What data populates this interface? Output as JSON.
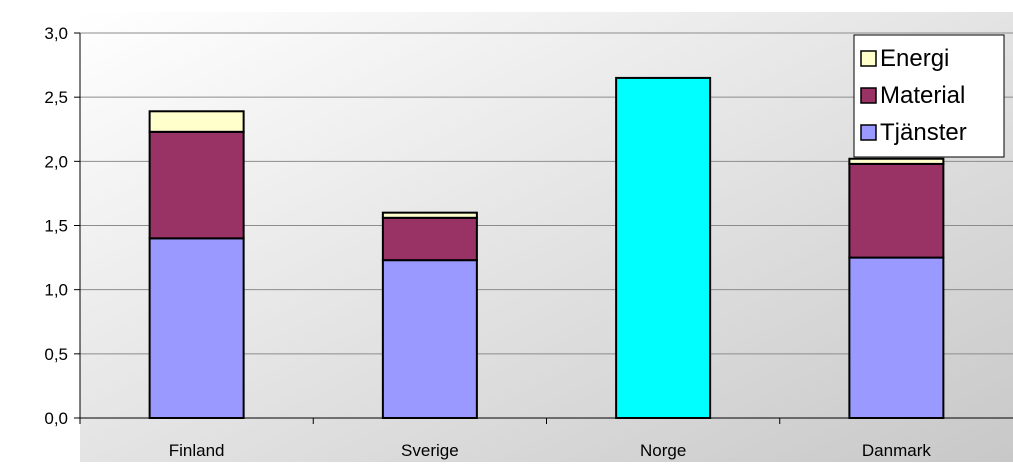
{
  "chart_data": {
    "type": "bar",
    "stacked": true,
    "categories": [
      "Finland",
      "Sverige",
      "Norge",
      "Danmark"
    ],
    "series": [
      {
        "name": "Tjänster",
        "color": "#9999ff",
        "values": [
          1.4,
          1.23,
          null,
          1.25
        ]
      },
      {
        "name": "Material",
        "color": "#993366",
        "values": [
          0.83,
          0.33,
          null,
          0.73
        ]
      },
      {
        "name": "Energi",
        "color": "#ffffcc",
        "values": [
          0.16,
          0.04,
          null,
          0.04
        ]
      }
    ],
    "totals": [
      {
        "category": "Norge",
        "value": 2.65,
        "color": "#00ffff"
      }
    ],
    "ylim": [
      0,
      3.0
    ],
    "yticks": [
      {
        "value": 0.0,
        "label": "0,0"
      },
      {
        "value": 0.5,
        "label": "0,5"
      },
      {
        "value": 1.0,
        "label": "1,0"
      },
      {
        "value": 1.5,
        "label": "1,5"
      },
      {
        "value": 2.0,
        "label": "2,0"
      },
      {
        "value": 2.5,
        "label": "2,5"
      },
      {
        "value": 3.0,
        "label": "3,0"
      }
    ],
    "grid": true,
    "legend": {
      "position": "top-right",
      "entries": [
        {
          "label": "Energi",
          "color": "#ffffcc"
        },
        {
          "label": "Material",
          "color": "#993366"
        },
        {
          "label": "Tjänster",
          "color": "#9999ff"
        }
      ]
    },
    "title": "",
    "xlabel": "",
    "ylabel": ""
  }
}
